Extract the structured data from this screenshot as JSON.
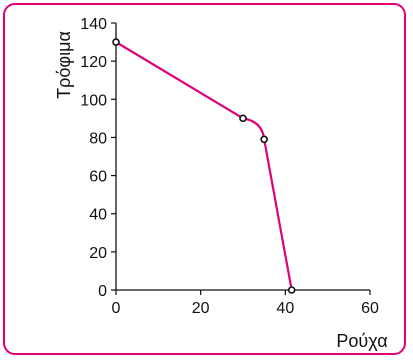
{
  "chart_data": {
    "type": "line",
    "title": "",
    "xlabel": "Ρούχα",
    "ylabel": "Τρόφιμα",
    "xlim": [
      0,
      60
    ],
    "ylim": [
      0,
      140
    ],
    "x_ticks": [
      "0",
      "20",
      "40",
      "60"
    ],
    "y_ticks": [
      "0",
      "20",
      "40",
      "60",
      "80",
      "100",
      "120",
      "140"
    ],
    "grid": false,
    "series": [
      {
        "points": [
          {
            "x": 0,
            "y": 130
          },
          {
            "x": 30,
            "y": 90
          },
          {
            "x": 35,
            "y": 79
          },
          {
            "x": 41.5,
            "y": 0
          }
        ],
        "color": "#e0007a"
      }
    ]
  }
}
